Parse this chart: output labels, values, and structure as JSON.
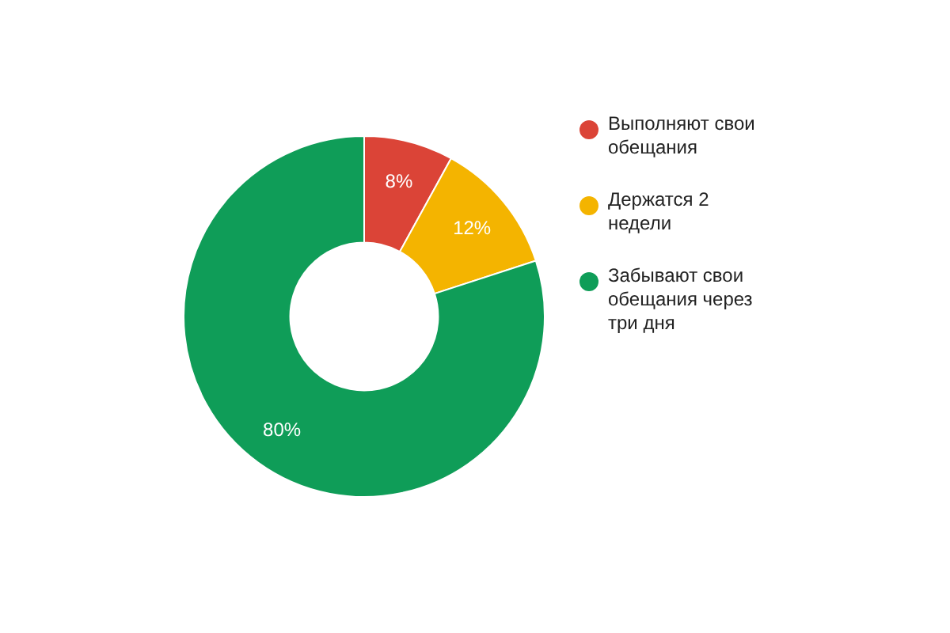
{
  "chart_data": {
    "type": "donut",
    "categories": [
      "Выполняют свои обещания",
      "Держатся 2 недели",
      "Забывают свои обещания через три дня"
    ],
    "values": [
      8,
      12,
      80
    ],
    "colors": [
      "#db4437",
      "#f4b400",
      "#0f9d58"
    ],
    "value_labels": [
      "8%",
      "12%",
      "80%"
    ],
    "legend": "right"
  }
}
